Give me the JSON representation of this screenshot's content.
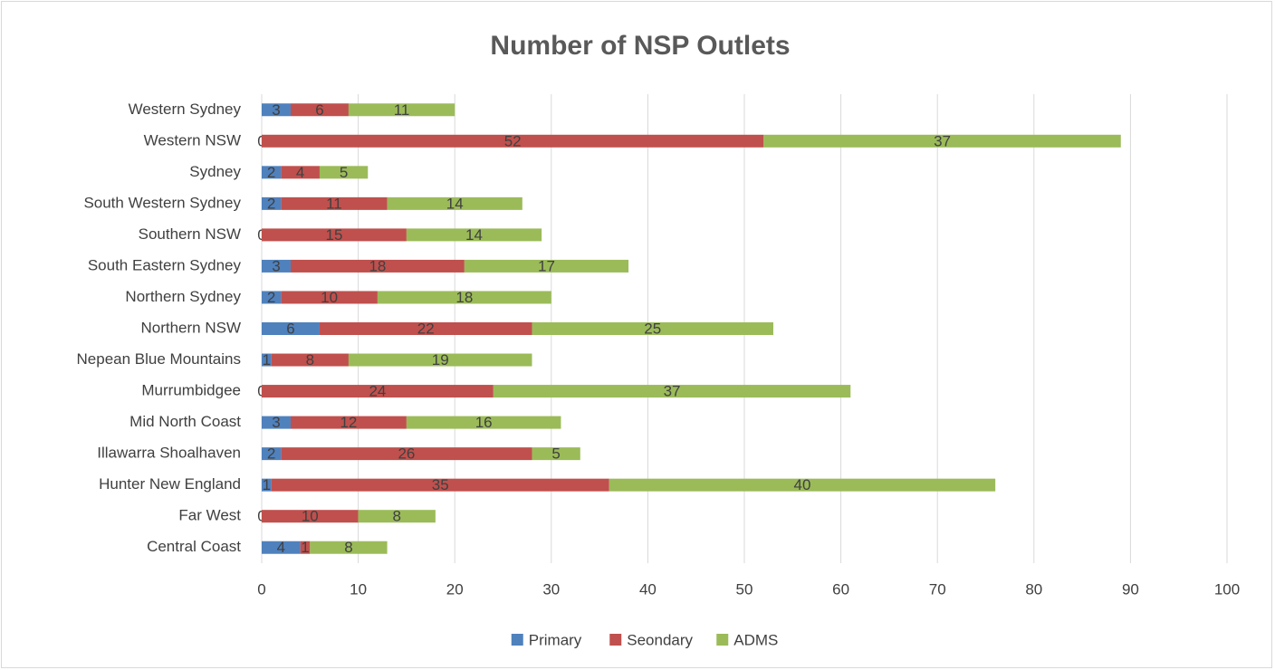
{
  "chart_data": {
    "type": "stacked_bar_horizontal",
    "title": "Number of NSP Outlets",
    "categories": [
      "Central Coast",
      "Far West",
      "Hunter New England",
      "Illawarra Shoalhaven",
      "Mid North Coast",
      "Murrumbidgee",
      "Nepean Blue Mountains",
      "Northern NSW",
      "Northern Sydney",
      "South Eastern Sydney",
      "Southern NSW",
      "South Western Sydney",
      "Sydney",
      "Western NSW",
      "Western Sydney"
    ],
    "series": [
      {
        "name": "Primary",
        "color": "#4f81bd",
        "values": [
          4,
          0,
          1,
          2,
          3,
          0,
          1,
          6,
          2,
          3,
          0,
          2,
          2,
          0,
          3
        ]
      },
      {
        "name": "Seondary",
        "color": "#c0504d",
        "values": [
          1,
          10,
          35,
          26,
          12,
          24,
          8,
          22,
          10,
          18,
          15,
          11,
          4,
          52,
          6
        ]
      },
      {
        "name": "ADMS",
        "color": "#9bbb59",
        "values": [
          8,
          8,
          40,
          5,
          16,
          37,
          19,
          25,
          18,
          17,
          14,
          14,
          5,
          37,
          11
        ]
      }
    ],
    "xlim": [
      0,
      100
    ],
    "xticks": [
      0,
      10,
      20,
      30,
      40,
      50,
      60,
      70,
      80,
      90,
      100
    ],
    "grid": true,
    "legend": "bottom"
  }
}
